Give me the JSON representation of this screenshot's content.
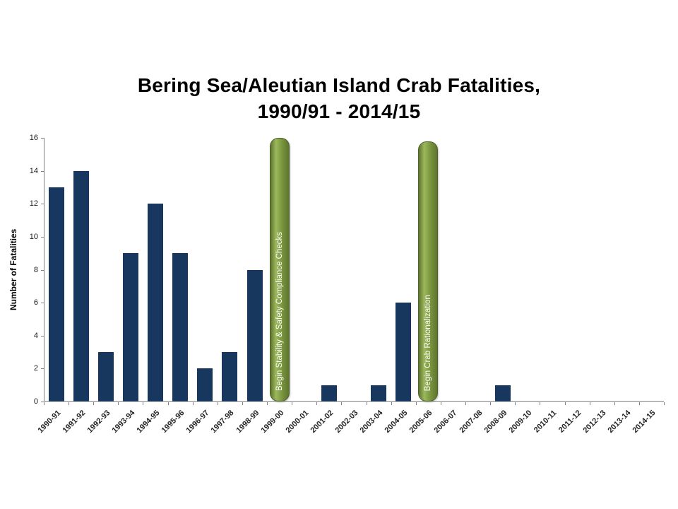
{
  "page": {
    "background_color": "#ffffff"
  },
  "chart_data": {
    "type": "bar",
    "title_line1": "Bering Sea/Aleutian Island Crab Fatalities,",
    "title_line2": "1990/91 - 2014/15",
    "ylabel": "Number of Fatalities",
    "xlabel": "",
    "ylim": [
      0,
      16
    ],
    "yticks": [
      0,
      2,
      4,
      6,
      8,
      10,
      12,
      14,
      16
    ],
    "grid": false,
    "legend": "none",
    "bar_color": "#17375E",
    "axis_color": "#808080",
    "tick_label_color": "#1a1a1a",
    "categories": [
      "1990-91",
      "1991-92",
      "1992-93",
      "1993-94",
      "1994-95",
      "1995-96",
      "1996-97",
      "1997-98",
      "1998-99",
      "1999-00",
      "2000-01",
      "2001-02",
      "2002-03",
      "2003-04",
      "2004-05",
      "2005-06",
      "2006-07",
      "2007-08",
      "2008-09",
      "2009-10",
      "2010-11",
      "2011-12",
      "2012-13",
      "2013-14",
      "2014-15"
    ],
    "values": [
      13,
      14,
      3,
      9,
      12,
      9,
      2,
      3,
      8,
      0,
      0,
      1,
      0,
      1,
      6,
      0,
      0,
      0,
      1,
      0,
      0,
      0,
      0,
      0,
      0
    ],
    "annotations": [
      {
        "label": "Begin Stability & Safety Compliance Checks",
        "category": "1999-00",
        "category_index": 9,
        "top_value": 16,
        "fill": "#77933C",
        "fill_light": "#9CB85C",
        "fill_dark": "#5E7530",
        "border": "#4F6228",
        "text_color": "#FFFFFF"
      },
      {
        "label": "Begin Crab Rationalization",
        "category": "2005-06",
        "category_index": 15,
        "top_value": 15.8,
        "fill": "#77933C",
        "fill_light": "#9CB85C",
        "fill_dark": "#5E7530",
        "border": "#4F6228",
        "text_color": "#FFFFFF"
      }
    ]
  }
}
